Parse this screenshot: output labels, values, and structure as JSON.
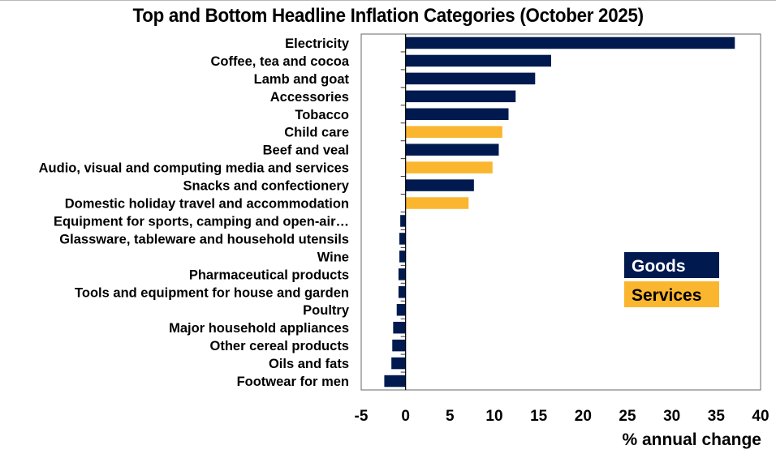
{
  "chart_data": {
    "type": "bar",
    "orientation": "horizontal",
    "title": "Top and Bottom Headline Inflation Categories (October 2025)",
    "xlabel": "% annual change",
    "ylabel": "",
    "xlim": [
      -5,
      40
    ],
    "xticks": [
      -5,
      0,
      5,
      10,
      15,
      20,
      25,
      30,
      35,
      40
    ],
    "grid": false,
    "legend_position": "middle-right",
    "legend": [
      {
        "name": "Goods",
        "color": "#001a50",
        "text_color": "#ffffff"
      },
      {
        "name": "Services",
        "color": "#fbb62f",
        "text_color": "#000000"
      }
    ],
    "categories": [
      "Electricity",
      "Coffee, tea and cocoa",
      "Lamb and goat",
      "Accessories",
      "Tobacco",
      "Child care",
      "Beef and veal",
      "Audio, visual and computing media and services",
      "Snacks and confectionery",
      "Domestic holiday travel and accommodation",
      "Equipment for sports, camping and open-air…",
      "Glassware, tableware and household utensils",
      "Wine",
      "Pharmaceutical products",
      "Tools and equipment for house and garden",
      "Poultry",
      "Major household appliances",
      "Other cereal products",
      "Oils and fats",
      "Footwear for men"
    ],
    "values": [
      37.1,
      16.4,
      14.6,
      12.4,
      11.6,
      10.9,
      10.5,
      9.8,
      7.7,
      7.1,
      -0.6,
      -0.7,
      -0.7,
      -0.8,
      -0.8,
      -1.0,
      -1.4,
      -1.5,
      -1.6,
      -2.4
    ],
    "groups": [
      "Goods",
      "Goods",
      "Goods",
      "Goods",
      "Goods",
      "Services",
      "Goods",
      "Services",
      "Goods",
      "Services",
      "Goods",
      "Goods",
      "Goods",
      "Goods",
      "Goods",
      "Goods",
      "Goods",
      "Goods",
      "Goods",
      "Goods"
    ]
  }
}
